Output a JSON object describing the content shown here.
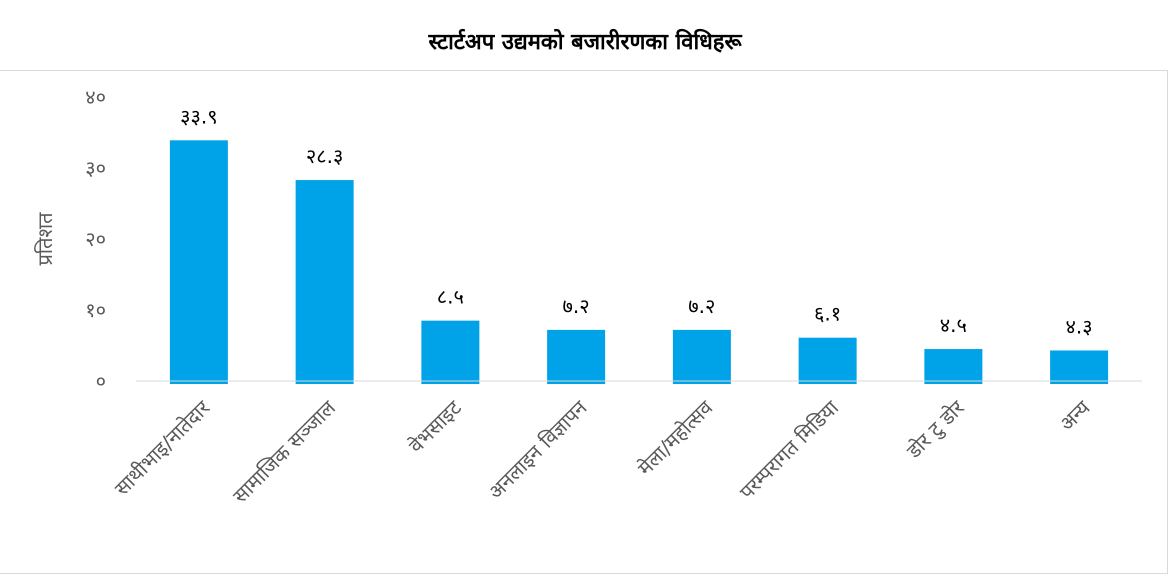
{
  "chart_data": {
    "type": "bar",
    "title": "स्टार्टअप उद्यमको बजारीरणका विधिहरू",
    "xlabel": "",
    "ylabel": "प्रतिशत",
    "ylim": [
      0,
      40
    ],
    "y_ticks": [
      0,
      10,
      20,
      30,
      40
    ],
    "y_tick_labels": [
      "०",
      "१०",
      "२०",
      "३०",
      "४०"
    ],
    "categories": [
      "साथीभाइ/नातेदार",
      "सामाजिक सञ्जाल",
      "वेभसाइट",
      "अनलाइन विज्ञापन",
      "मेला/महोत्सव",
      "परम्परागत मिडिया",
      "डोर टु डोर",
      "अन्य"
    ],
    "values": [
      33.9,
      28.3,
      8.5,
      7.2,
      7.2,
      6.1,
      4.5,
      4.3
    ],
    "value_labels": [
      "३३.९",
      "२८.३",
      "८.५",
      "७.२",
      "७.२",
      "६.१",
      "४.५",
      "४.३"
    ],
    "grid": false,
    "legend": "none",
    "bar_color": "#00a2e8",
    "axis_color": "#d9d9d9"
  }
}
